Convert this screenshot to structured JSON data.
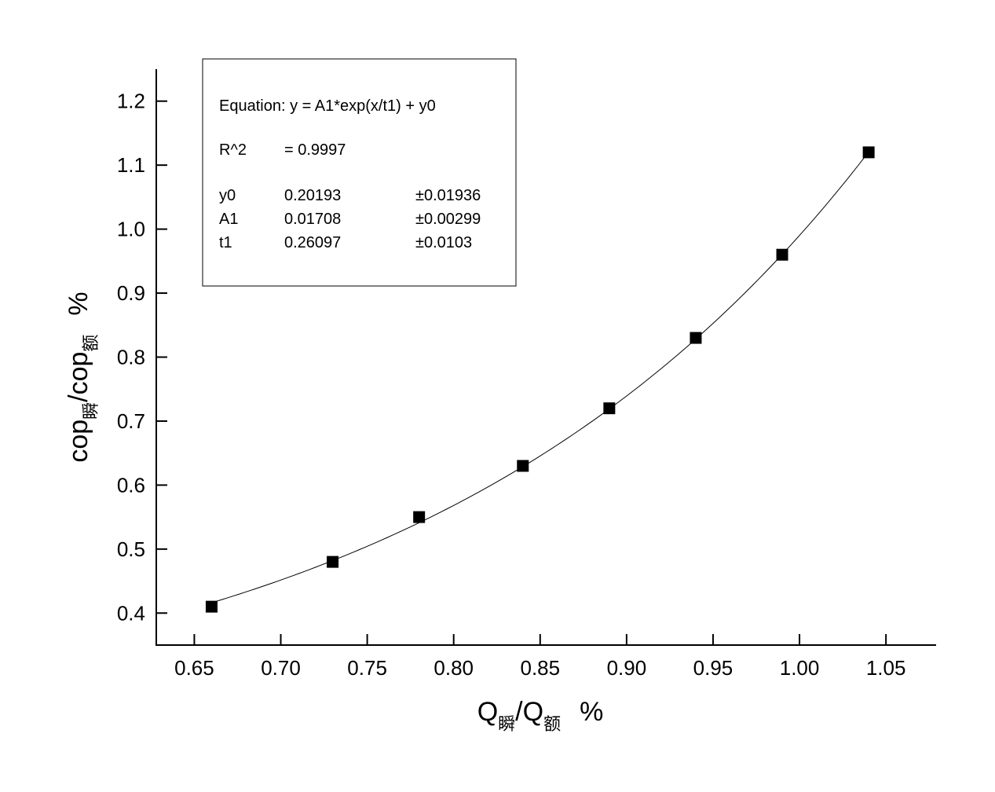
{
  "chart_data": {
    "type": "scatter",
    "x_ticks": [
      0.65,
      0.7,
      0.75,
      0.8,
      0.85,
      0.9,
      0.95,
      1.0,
      1.05
    ],
    "y_ticks": [
      0.4,
      0.5,
      0.6,
      0.7,
      0.8,
      0.9,
      1.0,
      1.1,
      1.2
    ],
    "xlim": [
      0.628,
      1.079
    ],
    "ylim": [
      0.35,
      1.25
    ],
    "x_tick_labels": [
      "0.65",
      "0.70",
      "0.75",
      "0.80",
      "0.85",
      "0.90",
      "0.95",
      "1.00",
      "1.05"
    ],
    "y_tick_labels": [
      "0.4",
      "0.5",
      "0.6",
      "0.7",
      "0.8",
      "0.9",
      "1.0",
      "1.1",
      "1.2"
    ],
    "xlabel": {
      "main1": "Q",
      "sub1": "瞬",
      "slash": "/Q",
      "sub2": "额",
      "unit": "%"
    },
    "ylabel": {
      "main1": "cop",
      "sub1": "瞬",
      "slash": "/cop",
      "sub2": "额",
      "unit": "%"
    },
    "series": [
      {
        "marker": "square",
        "color": "#000000",
        "x": [
          0.66,
          0.73,
          0.78,
          0.84,
          0.89,
          0.94,
          0.99,
          1.04
        ],
        "y": [
          0.41,
          0.48,
          0.55,
          0.63,
          0.72,
          0.83,
          0.96,
          1.12
        ]
      }
    ],
    "fit": {
      "model": "exponential",
      "y0": 0.20193,
      "A1": 0.01708,
      "t1": 0.26097,
      "x_range": [
        0.66,
        1.04
      ]
    },
    "annotation": {
      "equation": "Equation: y = A1*exp(x/t1) + y0",
      "r2_label": "R^2",
      "r2_value": "=  0.9997",
      "rows": [
        {
          "name": "y0",
          "value": "0.20193",
          "error": "±0.01936"
        },
        {
          "name": "A1",
          "value": "0.01708",
          "error": "±0.00299"
        },
        {
          "name": "t1",
          "value": "0.26097",
          "error": "±0.0103"
        }
      ]
    },
    "grid": false
  }
}
